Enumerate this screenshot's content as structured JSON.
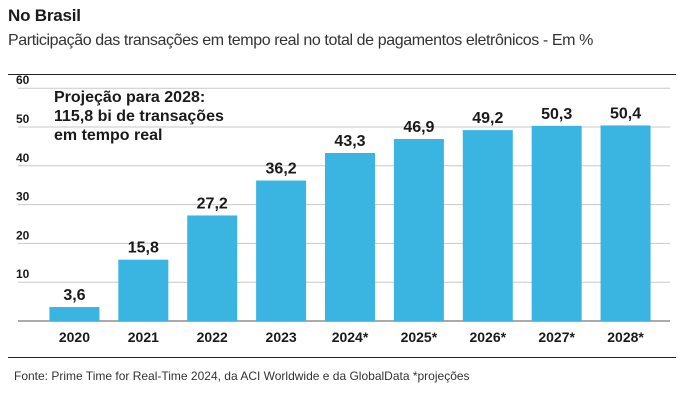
{
  "header": {
    "title": "No Brasil",
    "subtitle": "Participação das transações em tempo real no total de pagamentos eletrônicos - Em %"
  },
  "annotation": {
    "line1": "Projeção para 2028:",
    "line2": "115,8 bi de transações",
    "line3": "em tempo real"
  },
  "footer": {
    "source": "Fonte:  Prime Time for Real-Time 2024, da ACI Worldwide e da GlobalData *projeções"
  },
  "chart_data": {
    "type": "bar",
    "title": "No Brasil",
    "subtitle": "Participação das transações em tempo real no total de pagamentos eletrônicos - Em %",
    "xlabel": "",
    "ylabel": "",
    "categories": [
      "2020",
      "2021",
      "2022",
      "2023",
      "2024*",
      "2025*",
      "2026*",
      "2027*",
      "2028*"
    ],
    "values": [
      3.6,
      15.8,
      27.2,
      36.2,
      43.3,
      46.9,
      49.2,
      50.3,
      50.4
    ],
    "value_labels": [
      "3,6",
      "15,8",
      "27,2",
      "36,2",
      "43,3",
      "46,9",
      "49,2",
      "50,3",
      "50,4"
    ],
    "ylim": [
      0,
      60
    ],
    "yticks": [
      10,
      20,
      30,
      40,
      50,
      60
    ],
    "grid": true,
    "legend": "none",
    "bar_color": "#3ab4e1",
    "grid_color": "#c8c8c8"
  }
}
